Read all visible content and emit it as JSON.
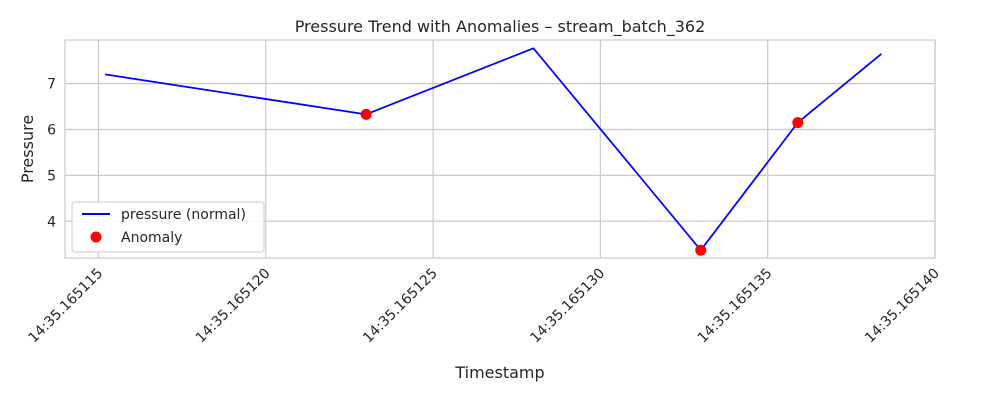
{
  "chart_data": {
    "type": "line",
    "title": "Pressure Trend with Anomalies – stream_batch_362",
    "xlabel": "Timestamp",
    "ylabel": "Pressure",
    "x_ticks": [
      "14:35.165115",
      "14:35.165120",
      "14:35.165125",
      "14:35.165130",
      "14:35.165135",
      "14:35.165140"
    ],
    "x_tick_values": [
      0.165115,
      0.16512,
      0.165125,
      0.16513,
      0.165135,
      0.16514
    ],
    "y_ticks": [
      4,
      5,
      6,
      7
    ],
    "xlim": [
      0.165114,
      0.16514
    ],
    "ylim": [
      3.2,
      7.95
    ],
    "grid": true,
    "legend_position": "lower-left",
    "series": [
      {
        "name": "pressure (normal)",
        "kind": "line",
        "color": "#0000ff",
        "x": [
          0.1651152,
          0.165123,
          0.165128,
          0.165133,
          0.1651359,
          0.1651384
        ],
        "y": [
          7.2,
          6.33,
          7.77,
          3.37,
          6.15,
          7.65
        ]
      },
      {
        "name": "Anomaly",
        "kind": "scatter",
        "color": "#ff0000",
        "x": [
          0.165123,
          0.165133,
          0.1651359
        ],
        "y": [
          6.33,
          3.37,
          6.15
        ]
      }
    ]
  }
}
